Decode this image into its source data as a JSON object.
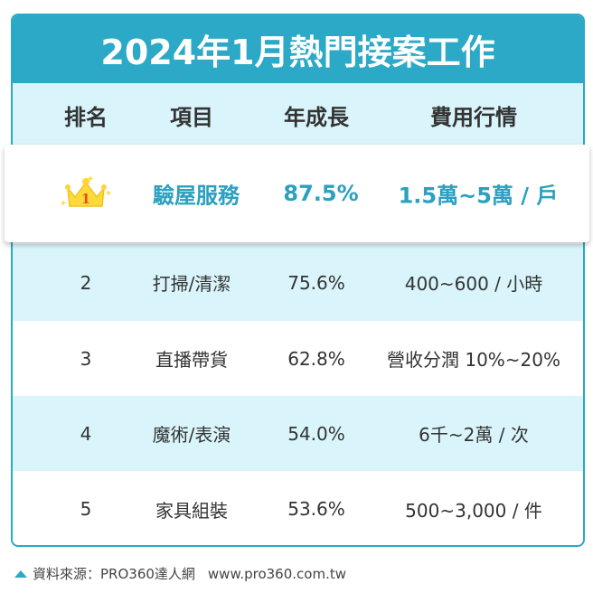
{
  "title": "2024年1月熱門接案工作",
  "headers": {
    "rank": "排名",
    "item": "項目",
    "growth": "年成長",
    "price": "費用行情"
  },
  "top": {
    "rank": "1",
    "item": "驗屋服務",
    "growth": "87.5%",
    "price": "1.5萬~5萬 / 戶"
  },
  "rows": [
    {
      "rank": "2",
      "item": "打掃/清潔",
      "growth": "75.6%",
      "price": "400~600 / 小時"
    },
    {
      "rank": "3",
      "item": "直播帶貨",
      "growth": "62.8%",
      "price": "營收分潤 10%~20%"
    },
    {
      "rank": "4",
      "item": "魔術/表演",
      "growth": "54.0%",
      "price": "6千~2萬 / 次"
    },
    {
      "rank": "5",
      "item": "家具組裝",
      "growth": "53.6%",
      "price": "500~3,000 / 件"
    }
  ],
  "footer": {
    "source": "資料來源：PRO360達人網",
    "url": "www.pro360.com.tw"
  }
}
